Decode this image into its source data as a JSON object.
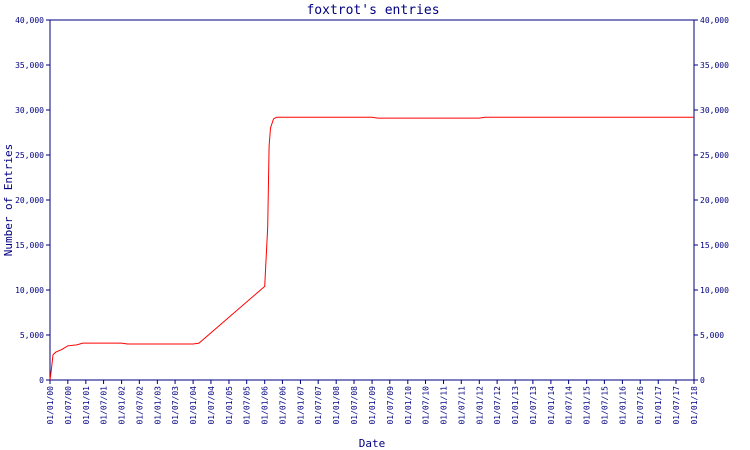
{
  "chart_data": {
    "type": "line",
    "title": "foxtrot's entries",
    "xlabel": "Date",
    "ylabel": "Number of Entries",
    "ylim": [
      0,
      40000
    ],
    "yticks": [
      0,
      5000,
      10000,
      15000,
      20000,
      25000,
      30000,
      35000,
      40000
    ],
    "ytick_labels": [
      "0",
      "5,000",
      "10,000",
      "15,000",
      "20,000",
      "25,000",
      "30,000",
      "35,000",
      "40,000"
    ],
    "xlim": [
      "2000-01-01",
      "2018-01-01"
    ],
    "xtick_labels": [
      "01/01/00",
      "01/07/00",
      "01/01/01",
      "01/07/01",
      "01/01/02",
      "01/07/02",
      "01/01/03",
      "01/07/03",
      "01/01/04",
      "01/07/04",
      "01/01/05",
      "01/07/05",
      "01/01/06",
      "01/07/06",
      "01/01/07",
      "01/07/07",
      "01/01/08",
      "01/07/08",
      "01/01/09",
      "01/07/09",
      "01/01/10",
      "01/07/10",
      "01/01/11",
      "01/07/11",
      "01/01/12",
      "01/07/12",
      "01/01/13",
      "01/07/13",
      "01/01/14",
      "01/07/14",
      "01/01/15",
      "01/07/15",
      "01/01/16",
      "01/07/16",
      "01/01/17",
      "01/07/17",
      "01/01/18"
    ],
    "grid": false,
    "legend": "none",
    "colors": {
      "line": "#ff0000",
      "axis": "#000080",
      "text": "#000080"
    },
    "series": [
      {
        "x": [
          "2000-01-01",
          "2000-01-15",
          "2000-02-01",
          "2000-03-01",
          "2000-05-01",
          "2000-07-01",
          "2000-10-01",
          "2000-12-01",
          "2001-01-01",
          "2002-01-01",
          "2002-03-01",
          "2003-01-01",
          "2004-01-01",
          "2004-03-01",
          "2006-01-01",
          "2006-02-01",
          "2006-02-15",
          "2006-03-01",
          "2006-04-01",
          "2006-05-01",
          "2006-06-01",
          "2006-07-01",
          "2008-01-01",
          "2009-01-01",
          "2009-03-01",
          "2010-01-01",
          "2011-01-01",
          "2012-01-01",
          "2012-03-01",
          "2014-01-01",
          "2016-01-01",
          "2018-01-01"
        ],
        "y": [
          0,
          1200,
          2800,
          3100,
          3400,
          3800,
          3900,
          4100,
          4100,
          4100,
          4000,
          4000,
          4000,
          4100,
          10400,
          17000,
          26000,
          28000,
          29000,
          29200,
          29200,
          29200,
          29200,
          29200,
          29100,
          29100,
          29100,
          29100,
          29200,
          29200,
          29200,
          29200
        ]
      }
    ]
  }
}
